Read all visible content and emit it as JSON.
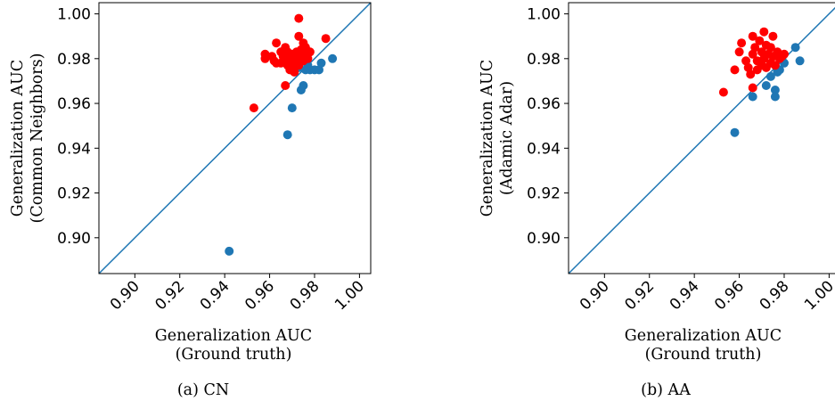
{
  "chart_data": [
    {
      "type": "scatter",
      "caption": "(a) CN",
      "xlabel": [
        "Generalization AUC",
        "(Ground truth)"
      ],
      "ylabel": [
        "Generalization AUC",
        "(Common Neighbors)"
      ],
      "xlim": [
        0.884,
        1.005
      ],
      "ylim": [
        0.884,
        1.005
      ],
      "xticks": [
        "0.90",
        "0.92",
        "0.94",
        "0.96",
        "0.98",
        "1.00"
      ],
      "yticks": [
        "0.90",
        "0.92",
        "0.94",
        "0.96",
        "0.98",
        "1.00"
      ],
      "diagonal": true,
      "grid": false,
      "colors": {
        "above": "#ff0000",
        "below": "#1f77b4",
        "diagonal": "#1f77b4"
      },
      "series": [
        {
          "color_key": "below",
          "points": [
            [
              0.942,
              0.894
            ],
            [
              0.968,
              0.946
            ],
            [
              0.97,
              0.958
            ],
            [
              0.974,
              0.966
            ],
            [
              0.975,
              0.968
            ],
            [
              0.976,
              0.975
            ],
            [
              0.978,
              0.975
            ],
            [
              0.98,
              0.975
            ],
            [
              0.982,
              0.975
            ],
            [
              0.983,
              0.978
            ],
            [
              0.988,
              0.98
            ],
            [
              0.973,
              0.976
            ],
            [
              0.977,
              0.977
            ]
          ]
        },
        {
          "color_key": "above",
          "points": [
            [
              0.953,
              0.958
            ],
            [
              0.967,
              0.968
            ],
            [
              0.958,
              0.98
            ],
            [
              0.958,
              0.982
            ],
            [
              0.961,
              0.981
            ],
            [
              0.962,
              0.979
            ],
            [
              0.963,
              0.978
            ],
            [
              0.963,
              0.987
            ],
            [
              0.965,
              0.983
            ],
            [
              0.965,
              0.978
            ],
            [
              0.966,
              0.981
            ],
            [
              0.967,
              0.985
            ],
            [
              0.967,
              0.979
            ],
            [
              0.968,
              0.977
            ],
            [
              0.968,
              0.983
            ],
            [
              0.969,
              0.98
            ],
            [
              0.969,
              0.975
            ],
            [
              0.97,
              0.982
            ],
            [
              0.97,
              0.978
            ],
            [
              0.97,
              0.976
            ],
            [
              0.971,
              0.974
            ],
            [
              0.971,
              0.98
            ],
            [
              0.972,
              0.983
            ],
            [
              0.972,
              0.979
            ],
            [
              0.973,
              0.977
            ],
            [
              0.973,
              0.998
            ],
            [
              0.973,
              0.99
            ],
            [
              0.974,
              0.981
            ],
            [
              0.974,
              0.984
            ],
            [
              0.975,
              0.987
            ],
            [
              0.975,
              0.979
            ],
            [
              0.976,
              0.982
            ],
            [
              0.976,
              0.985
            ],
            [
              0.977,
              0.98
            ],
            [
              0.978,
              0.983
            ],
            [
              0.985,
              0.989
            ]
          ]
        }
      ]
    },
    {
      "type": "scatter",
      "caption": "(b) AA",
      "xlabel": [
        "Generalization AUC",
        "(Ground truth)"
      ],
      "ylabel": [
        "Generalization AUC",
        "(Adamic Adar)"
      ],
      "xlim": [
        0.884,
        1.005
      ],
      "ylim": [
        0.884,
        1.005
      ],
      "xticks": [
        "0.90",
        "0.92",
        "0.94",
        "0.96",
        "0.98",
        "1.00"
      ],
      "yticks": [
        "0.90",
        "0.92",
        "0.94",
        "0.96",
        "0.98",
        "1.00"
      ],
      "diagonal": true,
      "grid": false,
      "colors": {
        "above": "#ff0000",
        "below": "#1f77b4",
        "diagonal": "#1f77b4"
      },
      "series": [
        {
          "color_key": "below",
          "points": [
            [
              0.958,
              0.947
            ],
            [
              0.966,
              0.963
            ],
            [
              0.972,
              0.968
            ],
            [
              0.976,
              0.966
            ],
            [
              0.976,
              0.963
            ],
            [
              0.977,
              0.974
            ],
            [
              0.978,
              0.975
            ],
            [
              0.98,
              0.978
            ],
            [
              0.985,
              0.985
            ],
            [
              0.987,
              0.979
            ],
            [
              0.974,
              0.972
            ],
            [
              0.979,
              0.98
            ]
          ]
        },
        {
          "color_key": "above",
          "points": [
            [
              0.953,
              0.965
            ],
            [
              0.958,
              0.975
            ],
            [
              0.96,
              0.983
            ],
            [
              0.961,
              0.987
            ],
            [
              0.963,
              0.979
            ],
            [
              0.964,
              0.976
            ],
            [
              0.965,
              0.973
            ],
            [
              0.966,
              0.967
            ],
            [
              0.966,
              0.982
            ],
            [
              0.966,
              0.99
            ],
            [
              0.967,
              0.985
            ],
            [
              0.968,
              0.979
            ],
            [
              0.968,
              0.975
            ],
            [
              0.969,
              0.988
            ],
            [
              0.97,
              0.983
            ],
            [
              0.97,
              0.977
            ],
            [
              0.971,
              0.992
            ],
            [
              0.971,
              0.98
            ],
            [
              0.972,
              0.986
            ],
            [
              0.972,
              0.976
            ],
            [
              0.973,
              0.982
            ],
            [
              0.974,
              0.978
            ],
            [
              0.974,
              0.985
            ],
            [
              0.975,
              0.99
            ],
            [
              0.975,
              0.981
            ],
            [
              0.976,
              0.977
            ],
            [
              0.977,
              0.983
            ],
            [
              0.978,
              0.98
            ],
            [
              0.979,
              0.981
            ],
            [
              0.98,
              0.982
            ]
          ]
        }
      ]
    }
  ]
}
